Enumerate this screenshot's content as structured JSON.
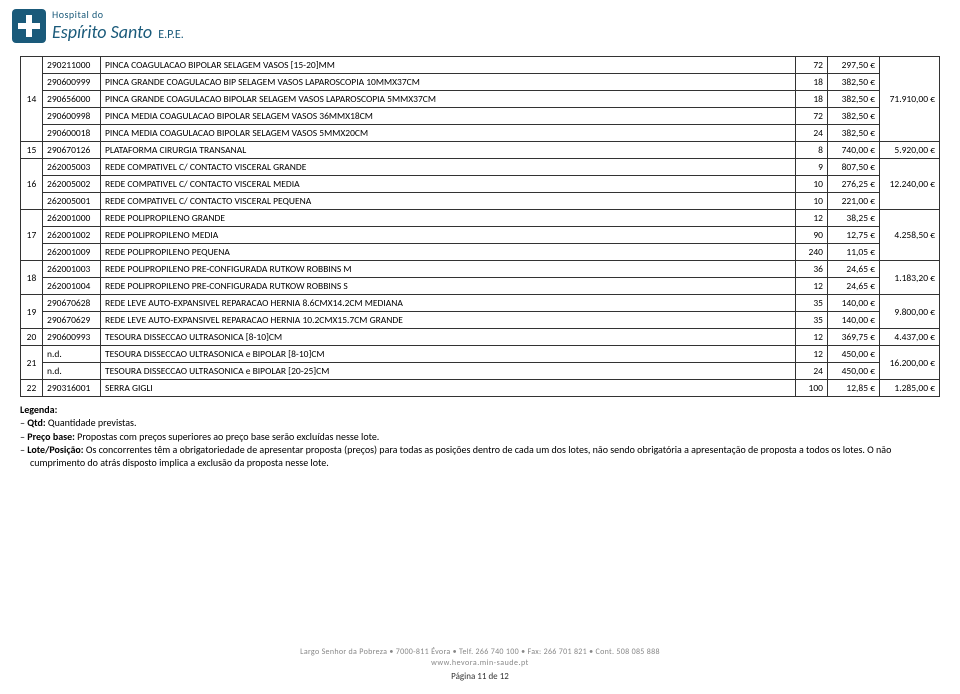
{
  "logo": {
    "top": "Hospital do",
    "main": "Espírito Santo",
    "epe": "E.P.E."
  },
  "rows": [
    {
      "g": "",
      "code": "290211000",
      "desc": "PINCA COAGULACAO BIPOLAR SELAGEM VASOS [15-20]MM",
      "qty": "72",
      "val": "297,50 €",
      "total": ""
    },
    {
      "g": "",
      "code": "290600999",
      "desc": "PINCA GRANDE COAGULACAO BIP SELAGEM VASOS LAPAROSCOPIA 10MMX37CM",
      "qty": "18",
      "val": "382,50 €",
      "total": ""
    },
    {
      "g": "14",
      "code": "290656000",
      "desc": "PINCA GRANDE COAGULACAO BIPOLAR SELAGEM VASOS LAPAROSCOPIA 5MMX37CM",
      "qty": "18",
      "val": "382,50 €",
      "total": "71.910,00 €"
    },
    {
      "g": "",
      "code": "290600998",
      "desc": "PINCA MEDIA COAGULACAO BIPOLAR SELAGEM VASOS 36MMX18CM",
      "qty": "72",
      "val": "382,50 €",
      "total": ""
    },
    {
      "g": "",
      "code": "290600018",
      "desc": "PINCA MEDIA COAGULACAO BIPOLAR SELAGEM VASOS 5MMX20CM",
      "qty": "24",
      "val": "382,50 €",
      "total": ""
    },
    {
      "g": "15",
      "code": "290670126",
      "desc": "PLATAFORMA CIRURGIA TRANSANAL",
      "qty": "8",
      "val": "740,00 €",
      "total": "5.920,00 €"
    },
    {
      "g": "",
      "code": "262005003",
      "desc": "REDE COMPATIVEL C/ CONTACTO VISCERAL GRANDE",
      "qty": "9",
      "val": "807,50 €",
      "total": ""
    },
    {
      "g": "16",
      "code": "262005002",
      "desc": "REDE COMPATIVEL C/ CONTACTO VISCERAL MEDIA",
      "qty": "10",
      "val": "276,25 €",
      "total": "12.240,00 €"
    },
    {
      "g": "",
      "code": "262005001",
      "desc": "REDE COMPATIVEL C/ CONTACTO VISCERAL PEQUENA",
      "qty": "10",
      "val": "221,00 €",
      "total": ""
    },
    {
      "g": "",
      "code": "262001000",
      "desc": "REDE POLIPROPILENO GRANDE",
      "qty": "12",
      "val": "38,25 €",
      "total": ""
    },
    {
      "g": "17",
      "code": "262001002",
      "desc": "REDE POLIPROPILENO MEDIA",
      "qty": "90",
      "val": "12,75 €",
      "total": "4.258,50 €"
    },
    {
      "g": "",
      "code": "262001009",
      "desc": "REDE POLIPROPILENO PEQUENA",
      "qty": "240",
      "val": "11,05 €",
      "total": ""
    },
    {
      "g": "18",
      "code": "262001003",
      "desc": "REDE POLIPROPILENO PRE-CONFIGURADA RUTKOW ROBBINS M",
      "qty": "36",
      "val": "24,65 €",
      "total": "1.183,20 €",
      "span": 2
    },
    {
      "g": "",
      "code": "262001004",
      "desc": "REDE POLIPROPILENO PRE-CONFIGURADA RUTKOW ROBBINS S",
      "qty": "12",
      "val": "24,65 €",
      "total": ""
    },
    {
      "g": "19",
      "code": "290670628",
      "desc": "REDE LEVE AUTO-EXPANSIVEL REPARACAO HERNIA 8.6CMX14.2CM MEDIANA",
      "qty": "35",
      "val": "140,00 €",
      "total": "9.800,00 €",
      "span": 2
    },
    {
      "g": "",
      "code": "290670629",
      "desc": "REDE LEVE AUTO-EXPANSIVEL REPARACAO HERNIA 10.2CMX15.7CM GRANDE",
      "qty": "35",
      "val": "140,00 €",
      "total": ""
    },
    {
      "g": "20",
      "code": "290600993",
      "desc": "TESOURA DISSECCAO ULTRASONICA [8-10]CM",
      "qty": "12",
      "val": "369,75 €",
      "total": "4.437,00 €"
    },
    {
      "g": "21",
      "code": "n.d.",
      "desc": "TESOURA DISSECCAO ULTRASONICA e BIPOLAR [8-10]CM",
      "qty": "12",
      "val": "450,00 €",
      "total": "16.200,00 €",
      "span": 2
    },
    {
      "g": "",
      "code": "n.d.",
      "desc": "TESOURA DISSECCAO ULTRASONICA e BIPOLAR [20-25]CM",
      "qty": "24",
      "val": "450,00 €",
      "total": ""
    },
    {
      "g": "22",
      "code": "290316001",
      "desc": "SERRA GIGLI",
      "qty": "100",
      "val": "12,85 €",
      "total": "1.285,00 €"
    }
  ],
  "groups": [
    {
      "start": 0,
      "span": 5,
      "label": "14",
      "totalRow": 2
    },
    {
      "start": 5,
      "span": 1,
      "label": "15",
      "totalRow": 5
    },
    {
      "start": 6,
      "span": 3,
      "label": "16",
      "totalRow": 7
    },
    {
      "start": 9,
      "span": 3,
      "label": "17",
      "totalRow": 10
    },
    {
      "start": 12,
      "span": 2,
      "label": "18",
      "totalRow": 12
    },
    {
      "start": 14,
      "span": 2,
      "label": "19",
      "totalRow": 14
    },
    {
      "start": 16,
      "span": 1,
      "label": "20",
      "totalRow": 16
    },
    {
      "start": 17,
      "span": 2,
      "label": "21",
      "totalRow": 17
    },
    {
      "start": 19,
      "span": 1,
      "label": "22",
      "totalRow": 19
    }
  ],
  "legend": {
    "title": "Legenda:",
    "items": [
      {
        "b": "Qtd:",
        "t": " Quantidade previstas."
      },
      {
        "b": "Preço base:",
        "t": " Propostas com preços superiores ao preço base serão excluídas nesse lote."
      },
      {
        "b": "Lote/Posição:",
        "t": " Os concorrentes têm a obrigatoriedade de apresentar proposta (preços) para todas as posições dentro de cada um dos lotes, não sendo obrigatória a apresentação de proposta a todos os lotes. O não cumprimento do atrás disposto implica a exclusão da proposta nesse lote."
      }
    ]
  },
  "footer": {
    "line1": "Largo Senhor da Pobreza • 7000-811 Évora • Telf. 266 740 100 • Fax: 266 701 821 • Cont. 508 085 888",
    "line2": "www.hevora.min-saude.pt",
    "page": "Página 11 de 12"
  }
}
